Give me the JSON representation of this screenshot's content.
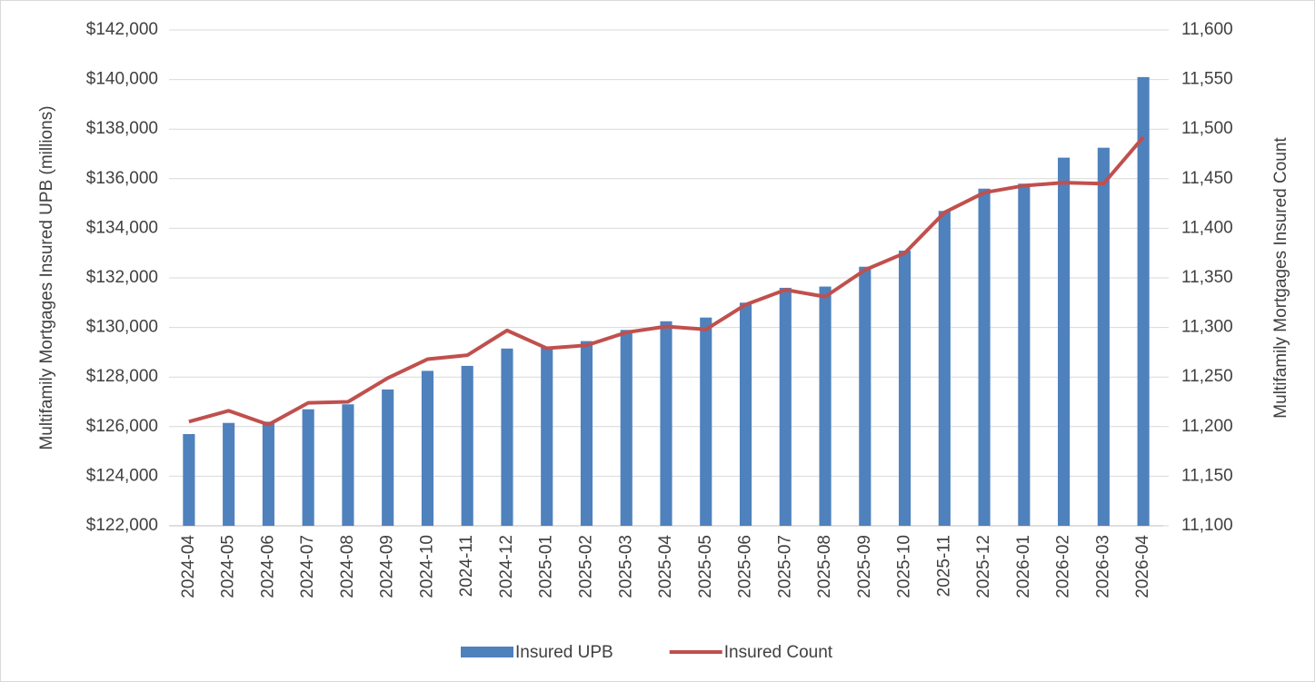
{
  "chart_data": {
    "type": "bar-line",
    "y_label": "Multifamily Mortgages Insured UPB (millions)",
    "y2_label": "Multifamily Mortgages Insured Count",
    "categories": [
      "2024-04",
      "2024-05",
      "2024-06",
      "2024-07",
      "2024-08",
      "2024-09",
      "2024-10",
      "2024-11",
      "2024-12",
      "2025-01",
      "2025-02",
      "2025-03",
      "2025-04",
      "2025-05",
      "2025-06",
      "2025-07",
      "2025-08",
      "2025-09",
      "2025-10",
      "2025-11",
      "2025-12",
      "2026-01",
      "2026-02",
      "2026-03",
      "2026-04"
    ],
    "series": [
      {
        "name": "Insured UPB",
        "type": "bar",
        "color": "#4f81bd",
        "values": [
          125700,
          126150,
          126200,
          126700,
          126900,
          127500,
          128250,
          128450,
          129150,
          129200,
          129450,
          129900,
          130250,
          130400,
          131000,
          131600,
          131650,
          132450,
          133100,
          134700,
          135600,
          135800,
          136850,
          137250,
          140100
        ]
      },
      {
        "name": "Insured Count",
        "type": "line",
        "axis": "y2",
        "color": "#c0504d",
        "values": [
          11205,
          11216,
          11202,
          11224,
          11225,
          11249,
          11268,
          11272,
          11297,
          11279,
          11282,
          11295,
          11301,
          11298,
          11323,
          11338,
          11331,
          11358,
          11375,
          11416,
          11436,
          11443,
          11446,
          11445,
          11492
        ]
      }
    ],
    "ylim": [
      122000,
      142000
    ],
    "yticks": [
      {
        "value": 122000,
        "label": "$122,000"
      },
      {
        "value": 124000,
        "label": "$124,000"
      },
      {
        "value": 126000,
        "label": "$126,000"
      },
      {
        "value": 128000,
        "label": "$128,000"
      },
      {
        "value": 130000,
        "label": "$130,000"
      },
      {
        "value": 132000,
        "label": "$132,000"
      },
      {
        "value": 134000,
        "label": "$134,000"
      },
      {
        "value": 136000,
        "label": "$136,000"
      },
      {
        "value": 138000,
        "label": "$138,000"
      },
      {
        "value": 140000,
        "label": "$140,000"
      },
      {
        "value": 142000,
        "label": "$142,000"
      }
    ],
    "y2lim": [
      11100,
      11600
    ],
    "y2ticks": [
      {
        "value": 11100,
        "label": "11,100"
      },
      {
        "value": 11150,
        "label": "11,150"
      },
      {
        "value": 11200,
        "label": "11,200"
      },
      {
        "value": 11250,
        "label": "11,250"
      },
      {
        "value": 11300,
        "label": "11,300"
      },
      {
        "value": 11350,
        "label": "11,350"
      },
      {
        "value": 11400,
        "label": "11,400"
      },
      {
        "value": 11450,
        "label": "11,450"
      },
      {
        "value": 11500,
        "label": "11,500"
      },
      {
        "value": 11550,
        "label": "11,550"
      },
      {
        "value": 11600,
        "label": "11,600"
      }
    ],
    "grid": true,
    "legend": "bottom"
  }
}
